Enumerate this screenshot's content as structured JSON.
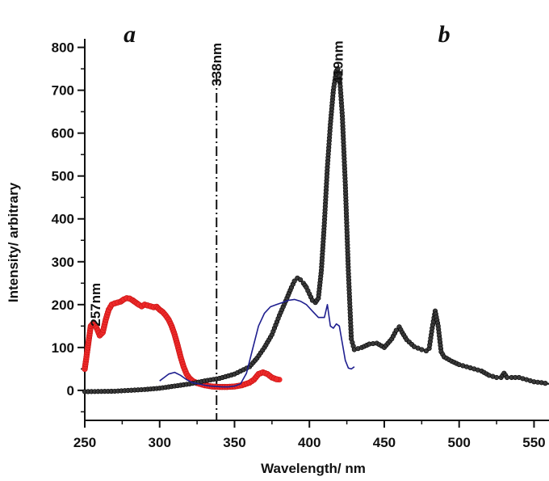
{
  "chart_data": {
    "type": "line",
    "xlabel": "Wavelength/ nm",
    "ylabel": "Intensity/ arbitrary",
    "xlim": [
      250,
      560
    ],
    "ylim": [
      -70,
      820
    ],
    "x_ticks": [
      250,
      300,
      350,
      400,
      450,
      500,
      550
    ],
    "y_ticks": [
      0,
      100,
      200,
      300,
      400,
      500,
      600,
      700,
      800
    ],
    "grid": false,
    "colors": {
      "red": "#ee2a2a",
      "black": "#1a1a1a",
      "blue": "#1f1f8f"
    },
    "panel_labels": [
      {
        "text": "a",
        "x": 280
      },
      {
        "text": "b",
        "x": 490
      }
    ],
    "annotations": [
      {
        "text": "257nm",
        "x": 257,
        "y": 200
      },
      {
        "text": "338nm",
        "x": 338,
        "y": 760
      },
      {
        "text": "419nm",
        "x": 419,
        "y": 765
      }
    ],
    "vline": {
      "x": 338
    },
    "series": [
      {
        "style": "red-dots",
        "x": [
          250,
          252,
          254,
          256,
          258,
          260,
          262,
          264,
          266,
          268,
          270,
          272,
          274,
          276,
          278,
          280,
          282,
          284,
          286,
          288,
          290,
          292,
          294,
          296,
          298,
          300,
          302,
          304,
          306,
          308,
          310,
          312,
          314,
          316,
          318,
          320,
          322,
          325,
          330,
          335,
          340,
          345,
          350,
          355,
          360,
          363,
          366,
          369,
          372,
          375,
          378,
          380
        ],
        "y": [
          50,
          100,
          150,
          158,
          145,
          128,
          135,
          165,
          188,
          200,
          203,
          205,
          207,
          212,
          215,
          214,
          210,
          205,
          200,
          196,
          200,
          198,
          196,
          194,
          195,
          188,
          183,
          175,
          165,
          150,
          130,
          105,
          78,
          55,
          38,
          28,
          22,
          17,
          12,
          9,
          8,
          8,
          9,
          12,
          18,
          25,
          38,
          42,
          38,
          30,
          26,
          25
        ]
      },
      {
        "style": "black-dotted-line",
        "x": [
          250,
          270,
          290,
          300,
          310,
          320,
          330,
          340,
          350,
          360,
          365,
          370,
          375,
          380,
          385,
          388,
          390,
          392,
          394,
          396,
          398,
          400,
          402,
          404,
          406,
          408,
          410,
          412,
          414,
          416,
          418,
          419,
          420,
          422,
          424,
          426,
          428,
          430,
          435,
          440,
          445,
          450,
          455,
          458,
          460,
          462,
          465,
          470,
          475,
          478,
          480,
          482,
          484,
          486,
          488,
          490,
          495,
          500,
          505,
          510,
          515,
          520,
          525,
          528,
          530,
          532,
          535,
          540,
          545,
          550,
          555,
          560
        ],
        "y": [
          -3,
          -2,
          2,
          5,
          10,
          15,
          22,
          28,
          38,
          55,
          75,
          100,
          130,
          175,
          215,
          240,
          255,
          262,
          258,
          250,
          240,
          225,
          210,
          205,
          215,
          280,
          390,
          520,
          620,
          700,
          745,
          750,
          740,
          640,
          480,
          280,
          120,
          95,
          100,
          108,
          110,
          100,
          120,
          140,
          148,
          135,
          118,
          102,
          95,
          92,
          98,
          145,
          185,
          150,
          90,
          78,
          68,
          60,
          55,
          50,
          45,
          35,
          30,
          30,
          40,
          30,
          30,
          30,
          25,
          20,
          18,
          15
        ]
      },
      {
        "style": "blue-line",
        "x": [
          300,
          303,
          306,
          310,
          314,
          318,
          322,
          326,
          330,
          334,
          338,
          342,
          346,
          350,
          354,
          358,
          362,
          366,
          370,
          374,
          378,
          382,
          386,
          390,
          394,
          398,
          402,
          406,
          410,
          412,
          414,
          416,
          418,
          420,
          422,
          424,
          426,
          428,
          430
        ],
        "y": [
          22,
          30,
          38,
          42,
          35,
          25,
          18,
          15,
          12,
          10,
          9,
          8,
          8,
          10,
          15,
          40,
          95,
          150,
          180,
          195,
          200,
          205,
          210,
          212,
          208,
          200,
          185,
          170,
          170,
          200,
          150,
          145,
          155,
          150,
          110,
          70,
          52,
          50,
          55
        ]
      }
    ]
  }
}
